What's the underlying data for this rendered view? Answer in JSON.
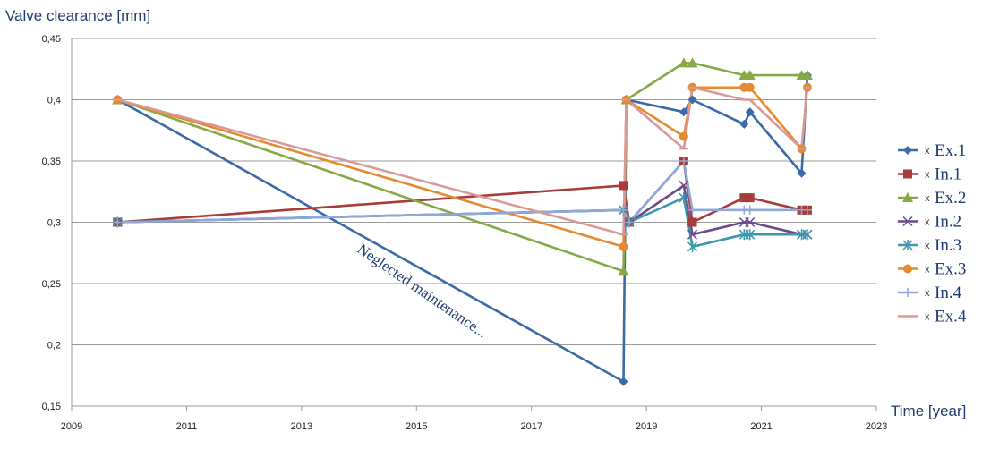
{
  "chart_data": {
    "type": "line",
    "ylabel": "Valve clearance [mm]",
    "xlabel": "Time [year]",
    "xlim": [
      2009,
      2023
    ],
    "ylim": [
      0.15,
      0.45
    ],
    "x_ticks": [
      2009,
      2011,
      2013,
      2015,
      2017,
      2019,
      2021,
      2023
    ],
    "y_ticks": [
      "0,15",
      "0,2",
      "0,25",
      "0,3",
      "0,35",
      "0,4",
      "0,45"
    ],
    "y_tick_values": [
      0.15,
      0.2,
      0.25,
      0.3,
      0.35,
      0.4,
      0.45
    ],
    "grid": "horizontal",
    "legend_position": "right",
    "legend_marker_prefix": "x",
    "annotation": "Neglected maintenance...",
    "series": [
      {
        "name": "Ex.1",
        "color": "#3a6aa8",
        "marker": "diamond",
        "points": [
          [
            2009.8,
            0.4
          ],
          [
            2018.6,
            0.17
          ],
          [
            2018.65,
            0.4
          ],
          [
            2019.65,
            0.39
          ],
          [
            2019.8,
            0.4
          ],
          [
            2020.7,
            0.38
          ],
          [
            2020.8,
            0.39
          ],
          [
            2021.7,
            0.34
          ],
          [
            2021.8,
            0.42
          ]
        ]
      },
      {
        "name": "In.1",
        "color": "#a83c3a",
        "marker": "square",
        "points": [
          [
            2009.8,
            0.3
          ],
          [
            2018.6,
            0.33
          ],
          [
            2018.7,
            0.3
          ],
          [
            2019.65,
            0.35
          ],
          [
            2019.8,
            0.3
          ],
          [
            2020.7,
            0.32
          ],
          [
            2020.8,
            0.32
          ],
          [
            2021.7,
            0.31
          ],
          [
            2021.8,
            0.31
          ]
        ]
      },
      {
        "name": "Ex.2",
        "color": "#86a845",
        "marker": "triangle",
        "points": [
          [
            2009.8,
            0.4
          ],
          [
            2018.6,
            0.26
          ],
          [
            2018.65,
            0.4
          ],
          [
            2019.65,
            0.43
          ],
          [
            2019.8,
            0.43
          ],
          [
            2020.7,
            0.42
          ],
          [
            2020.8,
            0.42
          ],
          [
            2021.7,
            0.42
          ],
          [
            2021.8,
            0.42
          ]
        ]
      },
      {
        "name": "In.2",
        "color": "#6b4a8c",
        "marker": "x",
        "points": [
          [
            2009.8,
            0.3
          ],
          [
            2018.6,
            0.31
          ],
          [
            2018.7,
            0.3
          ],
          [
            2019.65,
            0.33
          ],
          [
            2019.8,
            0.29
          ],
          [
            2020.7,
            0.3
          ],
          [
            2020.8,
            0.3
          ],
          [
            2021.7,
            0.29
          ],
          [
            2021.8,
            0.29
          ]
        ]
      },
      {
        "name": "In.3",
        "color": "#3a97ad",
        "marker": "star",
        "points": [
          [
            2009.8,
            0.3
          ],
          [
            2018.6,
            0.31
          ],
          [
            2018.7,
            0.3
          ],
          [
            2019.65,
            0.32
          ],
          [
            2019.8,
            0.28
          ],
          [
            2020.7,
            0.29
          ],
          [
            2020.8,
            0.29
          ],
          [
            2021.7,
            0.29
          ],
          [
            2021.8,
            0.29
          ]
        ]
      },
      {
        "name": "Ex.3",
        "color": "#e7892f",
        "marker": "circle",
        "points": [
          [
            2009.8,
            0.4
          ],
          [
            2018.6,
            0.28
          ],
          [
            2018.65,
            0.4
          ],
          [
            2019.65,
            0.37
          ],
          [
            2019.8,
            0.41
          ],
          [
            2020.7,
            0.41
          ],
          [
            2020.8,
            0.41
          ],
          [
            2021.7,
            0.36
          ],
          [
            2021.8,
            0.41
          ]
        ]
      },
      {
        "name": "In.4",
        "color": "#8ea8d8",
        "marker": "plus",
        "points": [
          [
            2009.8,
            0.3
          ],
          [
            2018.6,
            0.31
          ],
          [
            2018.7,
            0.3
          ],
          [
            2019.65,
            0.35
          ],
          [
            2019.8,
            0.31
          ],
          [
            2020.7,
            0.31
          ],
          [
            2020.8,
            0.31
          ],
          [
            2021.7,
            0.31
          ],
          [
            2021.8,
            0.31
          ]
        ]
      },
      {
        "name": "Ex.4",
        "color": "#d89a98",
        "marker": "dash",
        "points": [
          [
            2009.8,
            0.4
          ],
          [
            2018.6,
            0.29
          ],
          [
            2018.65,
            0.4
          ],
          [
            2019.65,
            0.36
          ],
          [
            2019.8,
            0.41
          ],
          [
            2020.7,
            0.4
          ],
          [
            2020.8,
            0.4
          ],
          [
            2021.7,
            0.36
          ],
          [
            2021.8,
            0.41
          ]
        ]
      }
    ]
  }
}
